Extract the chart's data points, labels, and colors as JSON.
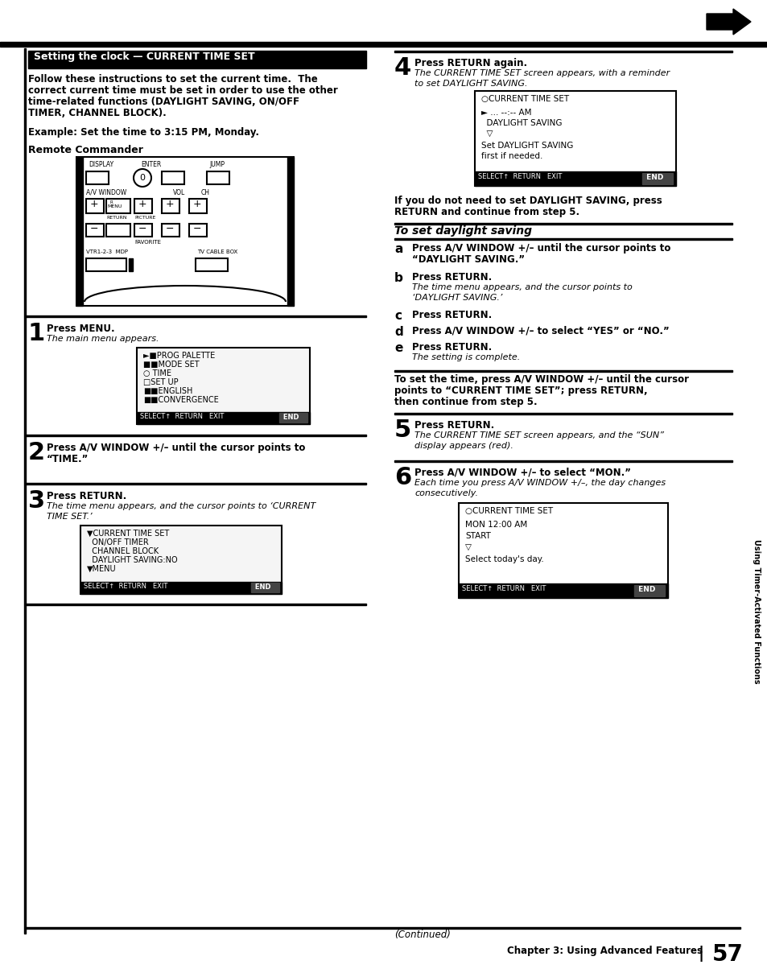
{
  "bg_color": "#ffffff",
  "section_title": "Setting the clock — CURRENT TIME SET",
  "body_text_1a": "Follow these instructions to set the current time.  The",
  "body_text_1b": "correct current time must be set in order to use the other",
  "body_text_1c": "time-related functions (DAYLIGHT SAVING, ON/OFF",
  "body_text_1d": "TIMER, CHANNEL BLOCK).",
  "example_text": "Example: Set the time to 3:15 PM, Monday.",
  "remote_label": "Remote Commander",
  "chapter_text": "Chapter 3: Using Advanced Features",
  "page_num": "57",
  "daylight_section": "To set daylight saving",
  "sidebar_text": "Using Timer-Activated Functions"
}
